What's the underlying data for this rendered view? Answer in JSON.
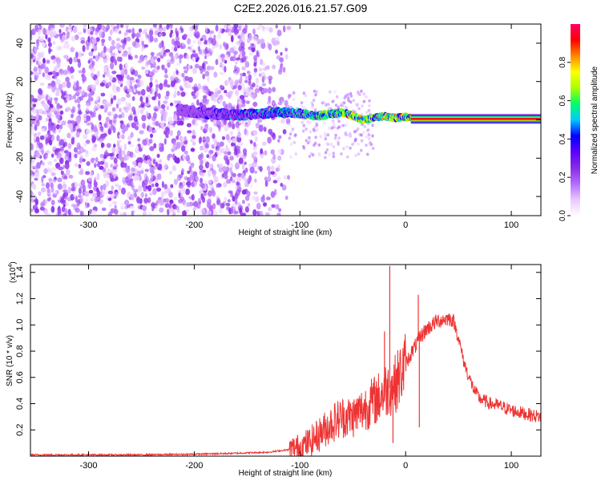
{
  "title": "C2E2.2026.016.21.57.G09",
  "colors": {
    "snr_line": "#ee3333",
    "frame": "#000000",
    "colormap": [
      "#ffffff",
      "#e9c8ff",
      "#b26bff",
      "#8a2be2",
      "#5a00ff",
      "#0000ff",
      "#00c8ff",
      "#00ff66",
      "#aaff00",
      "#ffff00",
      "#ff8800",
      "#ff0000",
      "#ff0066"
    ]
  },
  "chart_data": [
    {
      "type": "heatmap",
      "xlabel": "Height of straight line (km)",
      "ylabel": "Frequency (Hz)",
      "xlim": [
        -355,
        128
      ],
      "ylim": [
        -50,
        50
      ],
      "xticks": [
        {
          "value": -300,
          "label": "-300"
        },
        {
          "value": -200,
          "label": "-200"
        },
        {
          "value": -100,
          "label": "-100"
        },
        {
          "value": 0,
          "label": "0"
        },
        {
          "value": 100,
          "label": "100"
        }
      ],
      "yticks": [
        {
          "value": -40,
          "label": "-40"
        },
        {
          "value": -20,
          "label": "-20"
        },
        {
          "value": 0,
          "label": "0"
        },
        {
          "value": 20,
          "label": "20"
        },
        {
          "value": 40,
          "label": "40"
        }
      ],
      "colorbar": {
        "label": "Normalized spectral amplitude",
        "range": [
          0,
          1
        ],
        "ticks": [
          {
            "value": 0.0,
            "label": "0.0"
          },
          {
            "value": 0.2,
            "label": "0.2"
          },
          {
            "value": 0.4,
            "label": "0.4"
          },
          {
            "value": 0.6,
            "label": "0.6"
          },
          {
            "value": 0.8,
            "label": "0.8"
          }
        ]
      },
      "ridge": [
        [
          -215,
          5
        ],
        [
          -195,
          4
        ],
        [
          -180,
          3
        ],
        [
          -160,
          2.5
        ],
        [
          -140,
          3
        ],
        [
          -120,
          4
        ],
        [
          -100,
          3.5
        ],
        [
          -85,
          2
        ],
        [
          -70,
          3
        ],
        [
          -60,
          4
        ],
        [
          -50,
          2
        ],
        [
          -40,
          0
        ],
        [
          -30,
          1
        ],
        [
          -20,
          2
        ],
        [
          -10,
          1
        ],
        [
          0,
          1.5
        ],
        [
          10,
          0.5
        ],
        [
          128,
          0.5
        ]
      ],
      "noise_region": {
        "x_start": -355,
        "x_end": -110,
        "freq_span": [
          -50,
          50
        ]
      },
      "carrier_band": {
        "x_start": 5,
        "x_end": 128,
        "freq": 0.5
      }
    },
    {
      "type": "line",
      "xlabel": "Height of straight line (km)",
      "ylabel": "SNR (10 * v/v)",
      "scale_label": "(x10",
      "scale_exp": "4",
      "scale_close": ")",
      "xlim": [
        -355,
        128
      ],
      "ylim": [
        0,
        1.46
      ],
      "xticks": [
        {
          "value": -300,
          "label": "-300"
        },
        {
          "value": -200,
          "label": "-200"
        },
        {
          "value": -100,
          "label": "-100"
        },
        {
          "value": 0,
          "label": "0"
        },
        {
          "value": 100,
          "label": "100"
        }
      ],
      "yticks": [
        {
          "value": 0.2,
          "label": "0.2"
        },
        {
          "value": 0.4,
          "label": "0.4"
        },
        {
          "value": 0.6,
          "label": "0.6"
        },
        {
          "value": 0.8,
          "label": "0.8"
        },
        {
          "value": 1.0,
          "label": "1.0"
        },
        {
          "value": 1.2,
          "label": "1.2"
        },
        {
          "value": 1.4,
          "label": "1.4"
        }
      ],
      "series": [
        {
          "x": [
            -355,
            -300,
            -250,
            -200,
            -170,
            -150,
            -130,
            -110,
            -100,
            -90,
            -80,
            -70,
            -60,
            -50,
            -40,
            -30,
            -25,
            -20,
            -15,
            -10,
            -5,
            0,
            5,
            10,
            15,
            20,
            25,
            30,
            35,
            40,
            45,
            50,
            55,
            60,
            65,
            70,
            75,
            80,
            90,
            100,
            110,
            120,
            128
          ],
          "y": [
            0.01,
            0.01,
            0.01,
            0.015,
            0.02,
            0.025,
            0.03,
            0.05,
            0.07,
            0.11,
            0.18,
            0.25,
            0.3,
            0.3,
            0.36,
            0.42,
            0.45,
            0.5,
            0.52,
            0.55,
            0.62,
            0.7,
            0.78,
            0.85,
            0.92,
            0.97,
            1.0,
            1.03,
            1.04,
            1.05,
            1.04,
            0.9,
            0.72,
            0.6,
            0.5,
            0.44,
            0.42,
            0.4,
            0.38,
            0.35,
            0.33,
            0.31,
            0.3
          ]
        }
      ],
      "spikes": [
        {
          "x": -15,
          "y": 1.45
        },
        {
          "x": -20,
          "y": 0.95
        },
        {
          "x": 12,
          "y": 1.23
        },
        {
          "x": -12,
          "y": 0.1
        },
        {
          "x": 13,
          "y": 0.22
        }
      ]
    }
  ]
}
